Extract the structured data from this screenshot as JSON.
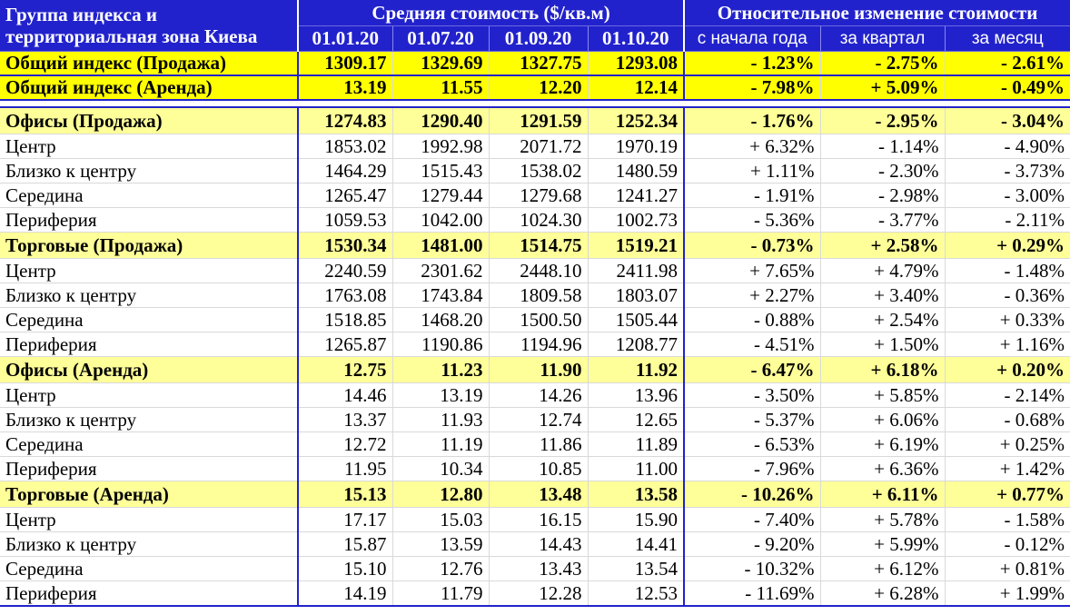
{
  "header": {
    "group_label_line1": "Группа индекса и",
    "group_label_line2": "территориальная зона Киева",
    "avg_cost_label": "Средняя стоимость ($/кв.м)",
    "rel_change_label": "Относительное изменение стоимости",
    "dates": [
      "01.01.20",
      "01.07.20",
      "01.09.20",
      "01.10.20"
    ],
    "changes": [
      "с начала года",
      "за квартал",
      "за месяц"
    ]
  },
  "totals": [
    {
      "name": "Общий индекс (Продажа)",
      "values": [
        "1309.17",
        "1329.69",
        "1327.75",
        "1293.08"
      ],
      "changes": [
        "- 1.23%",
        "- 2.75%",
        "- 2.61%"
      ]
    },
    {
      "name": "Общий индекс (Аренда)",
      "values": [
        "13.19",
        "11.55",
        "12.20",
        "12.14"
      ],
      "changes": [
        "- 7.98%",
        "+ 5.09%",
        "- 0.49%"
      ]
    }
  ],
  "sections": [
    {
      "name": "Офисы (Продажа)",
      "values": [
        "1274.83",
        "1290.40",
        "1291.59",
        "1252.34"
      ],
      "changes": [
        "- 1.76%",
        "- 2.95%",
        "- 3.04%"
      ],
      "rows": [
        {
          "name": "Центр",
          "values": [
            "1853.02",
            "1992.98",
            "2071.72",
            "1970.19"
          ],
          "changes": [
            "+ 6.32%",
            "- 1.14%",
            "- 4.90%"
          ]
        },
        {
          "name": "Близко к центру",
          "values": [
            "1464.29",
            "1515.43",
            "1538.02",
            "1480.59"
          ],
          "changes": [
            "+ 1.11%",
            "- 2.30%",
            "- 3.73%"
          ]
        },
        {
          "name": "Середина",
          "values": [
            "1265.47",
            "1279.44",
            "1279.68",
            "1241.27"
          ],
          "changes": [
            "- 1.91%",
            "- 2.98%",
            "- 3.00%"
          ]
        },
        {
          "name": "Периферия",
          "values": [
            "1059.53",
            "1042.00",
            "1024.30",
            "1002.73"
          ],
          "changes": [
            "- 5.36%",
            "- 3.77%",
            "- 2.11%"
          ]
        }
      ]
    },
    {
      "name": "Торговые (Продажа)",
      "values": [
        "1530.34",
        "1481.00",
        "1514.75",
        "1519.21"
      ],
      "changes": [
        "- 0.73%",
        "+ 2.58%",
        "+ 0.29%"
      ],
      "rows": [
        {
          "name": "Центр",
          "values": [
            "2240.59",
            "2301.62",
            "2448.10",
            "2411.98"
          ],
          "changes": [
            "+ 7.65%",
            "+ 4.79%",
            "- 1.48%"
          ]
        },
        {
          "name": "Близко к центру",
          "values": [
            "1763.08",
            "1743.84",
            "1809.58",
            "1803.07"
          ],
          "changes": [
            "+ 2.27%",
            "+ 3.40%",
            "- 0.36%"
          ]
        },
        {
          "name": "Середина",
          "values": [
            "1518.85",
            "1468.20",
            "1500.50",
            "1505.44"
          ],
          "changes": [
            "- 0.88%",
            "+ 2.54%",
            "+ 0.33%"
          ]
        },
        {
          "name": "Периферия",
          "values": [
            "1265.87",
            "1190.86",
            "1194.96",
            "1208.77"
          ],
          "changes": [
            "- 4.51%",
            "+ 1.50%",
            "+ 1.16%"
          ]
        }
      ]
    },
    {
      "name": "Офисы (Аренда)",
      "values": [
        "12.75",
        "11.23",
        "11.90",
        "11.92"
      ],
      "changes": [
        "- 6.47%",
        "+ 6.18%",
        "+ 0.20%"
      ],
      "rows": [
        {
          "name": "Центр",
          "values": [
            "14.46",
            "13.19",
            "14.26",
            "13.96"
          ],
          "changes": [
            "- 3.50%",
            "+ 5.85%",
            "- 2.14%"
          ]
        },
        {
          "name": "Близко к центру",
          "values": [
            "13.37",
            "11.93",
            "12.74",
            "12.65"
          ],
          "changes": [
            "- 5.37%",
            "+ 6.06%",
            "- 0.68%"
          ]
        },
        {
          "name": "Середина",
          "values": [
            "12.72",
            "11.19",
            "11.86",
            "11.89"
          ],
          "changes": [
            "- 6.53%",
            "+ 6.19%",
            "+ 0.25%"
          ]
        },
        {
          "name": "Периферия",
          "values": [
            "11.95",
            "10.34",
            "10.85",
            "11.00"
          ],
          "changes": [
            "- 7.96%",
            "+ 6.36%",
            "+ 1.42%"
          ]
        }
      ]
    },
    {
      "name": "Торговые (Аренда)",
      "values": [
        "15.13",
        "12.80",
        "13.48",
        "13.58"
      ],
      "changes": [
        "- 10.26%",
        "+ 6.11%",
        "+ 0.77%"
      ],
      "rows": [
        {
          "name": "Центр",
          "values": [
            "17.17",
            "15.03",
            "16.15",
            "15.90"
          ],
          "changes": [
            "- 7.40%",
            "+ 5.78%",
            "- 1.58%"
          ]
        },
        {
          "name": "Близко к центру",
          "values": [
            "15.87",
            "13.59",
            "14.43",
            "14.41"
          ],
          "changes": [
            "- 9.20%",
            "+ 5.99%",
            "- 0.12%"
          ]
        },
        {
          "name": "Середина",
          "values": [
            "15.10",
            "12.76",
            "13.43",
            "13.54"
          ],
          "changes": [
            "- 10.32%",
            "+ 6.12%",
            "+ 0.81%"
          ]
        },
        {
          "name": "Периферия",
          "values": [
            "14.19",
            "11.79",
            "12.28",
            "12.53"
          ],
          "changes": [
            "- 11.69%",
            "+ 6.28%",
            "+ 1.99%"
          ]
        }
      ]
    }
  ]
}
